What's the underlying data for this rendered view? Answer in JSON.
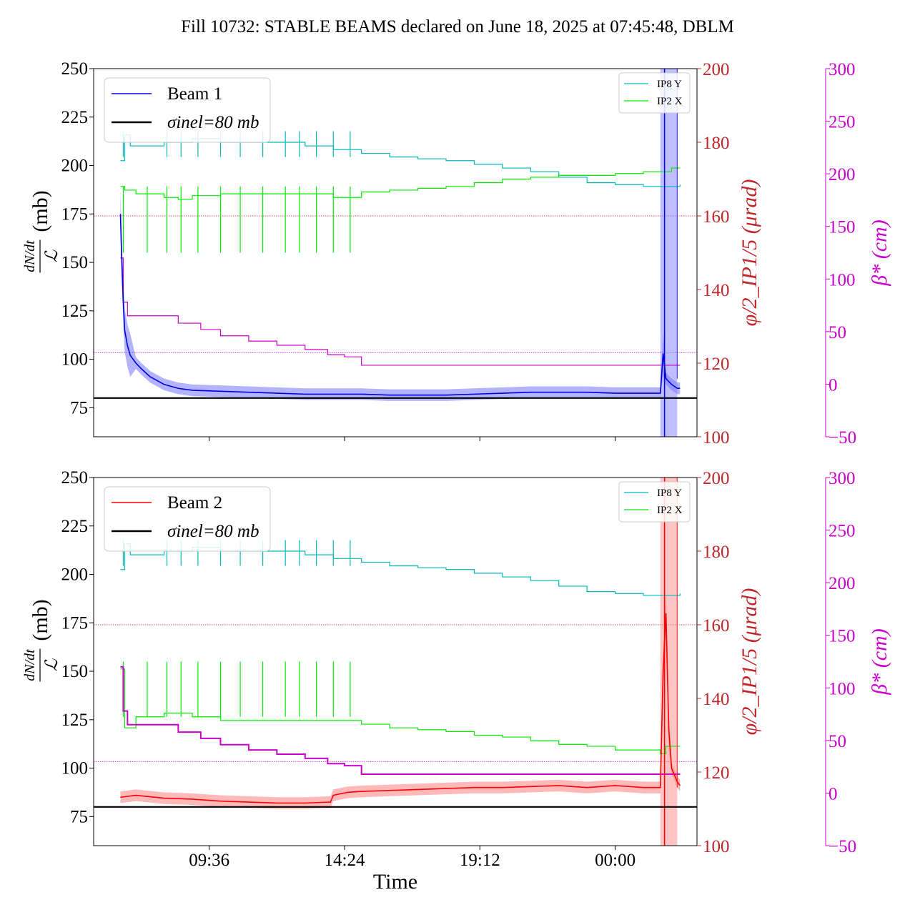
{
  "figure": {
    "title": "Fill 10732: STABLE BEAMS declared on June 18, 2025 at 07:45:48, DBLM",
    "xlabel": "Time"
  },
  "colors": {
    "beam1": "#0000dd",
    "beam2": "#ff0000",
    "ip8y": "#00bbbb",
    "ip2x": "#00ee00",
    "beta": "#cc00cc",
    "phi": "#c0262a",
    "sigma": "#000000"
  },
  "chart_data": [
    {
      "type": "line",
      "panel": "top",
      "ylabel": "dN/dt / ℒ (mb)",
      "y2label": "φ/2_IP1/5 (μrad)",
      "y3label": "β* (cm)",
      "ylim": [
        60,
        250
      ],
      "y2lim": [
        100,
        200
      ],
      "y3lim": [
        -50,
        300
      ],
      "yticks": [
        "75",
        "100",
        "125",
        "150",
        "175",
        "200",
        "225",
        "250"
      ],
      "y2ticks": [
        "100",
        "120",
        "140",
        "160",
        "180",
        "200"
      ],
      "y3ticks": [
        "−50",
        "0",
        "50",
        "100",
        "150",
        "200",
        "250",
        "300"
      ],
      "x_tick_hours": [
        9.6,
        14.4,
        19.2,
        24.0
      ],
      "xlim_hours": [
        5.5,
        26.9
      ],
      "legend_main": [
        "Beam 1",
        "σinel=80 mb"
      ],
      "legend_secondary": [
        "IP8 Y",
        "IP2 X"
      ],
      "sigma_inel_mb": 80,
      "beta_ref_cm": 30,
      "phi_ref_urad": 160,
      "series": [
        {
          "name": "Beam 1",
          "axis": "left",
          "x": [
            6.45,
            6.5,
            6.55,
            6.6,
            6.7,
            6.8,
            7.0,
            7.2,
            7.5,
            8.0,
            8.5,
            9.0,
            10.0,
            11.0,
            12.0,
            13.0,
            14.0,
            15.0,
            16.0,
            17.0,
            18.0,
            19.0,
            20.0,
            21.0,
            22.0,
            23.0,
            24.0,
            25.0,
            25.6,
            25.7,
            25.8,
            26.0,
            26.1,
            26.2,
            26.3
          ],
          "y": [
            175,
            150,
            130,
            115,
            107,
            102,
            98,
            95,
            91,
            87,
            85,
            84,
            83.5,
            83,
            82.5,
            82,
            82,
            82,
            81.5,
            81.5,
            81.5,
            82,
            82.5,
            83,
            83,
            83,
            82.5,
            82.5,
            82.5,
            103,
            90,
            87,
            86,
            85,
            85
          ]
        },
        {
          "name": "IP8 Y",
          "axis": "right",
          "x": [
            6.45,
            6.6,
            6.8,
            7.5,
            8.0,
            9.0,
            10.0,
            11.0,
            12.0,
            13.0,
            14.0,
            15.0,
            16.0,
            17.0,
            18.0,
            19.0,
            20.0,
            21.0,
            22.0,
            23.0,
            24.0,
            25.0,
            26.0,
            26.3
          ],
          "y": [
            175,
            182,
            179,
            179,
            180,
            181,
            180,
            180,
            180,
            179,
            178,
            177,
            176,
            175.5,
            175,
            174,
            173,
            172,
            170.5,
            169,
            168.5,
            168,
            168,
            168.5
          ]
        },
        {
          "name": "IP2 X",
          "axis": "right",
          "x": [
            6.45,
            6.6,
            7.0,
            8.0,
            8.5,
            9.0,
            10.0,
            11.0,
            12.0,
            13.0,
            14.0,
            15.0,
            16.0,
            17.0,
            18.0,
            19.0,
            20.0,
            21.0,
            22.0,
            23.0,
            24.0,
            25.0,
            26.0,
            26.3
          ],
          "y": [
            168,
            167,
            166,
            165,
            164.5,
            165.5,
            166,
            166,
            166,
            166,
            165,
            166.5,
            167,
            167.5,
            168,
            169,
            170,
            170.5,
            171,
            171,
            171.5,
            172,
            173,
            173
          ]
        },
        {
          "name": "beta*",
          "axis": "beta",
          "x": [
            6.45,
            6.55,
            6.7,
            8.0,
            8.5,
            9.3,
            10.0,
            11.0,
            12.0,
            13.0,
            13.8,
            14.4,
            15.0,
            16.0,
            18.0,
            20.0,
            22.0,
            24.0,
            26.3
          ],
          "y": [
            120,
            78,
            65,
            65,
            58,
            52,
            46,
            41,
            37,
            33,
            28,
            26,
            18,
            18,
            18,
            18,
            18,
            18,
            18
          ]
        }
      ]
    },
    {
      "type": "line",
      "panel": "bottom",
      "ylabel": "dN/dt / ℒ (mb)",
      "y2label": "φ/2_IP1/5 (μrad)",
      "y3label": "β* (cm)",
      "ylim": [
        60,
        250
      ],
      "y2lim": [
        100,
        200
      ],
      "y3lim": [
        -50,
        300
      ],
      "yticks": [
        "75",
        "100",
        "125",
        "150",
        "175",
        "200",
        "225",
        "250"
      ],
      "y2ticks": [
        "100",
        "120",
        "140",
        "160",
        "180",
        "200"
      ],
      "y3ticks": [
        "−50",
        "0",
        "50",
        "100",
        "150",
        "200",
        "250",
        "300"
      ],
      "xticks": [
        "09:36",
        "14:24",
        "19:12",
        "00:00"
      ],
      "x_tick_hours": [
        9.6,
        14.4,
        19.2,
        24.0
      ],
      "xlim_hours": [
        5.5,
        26.9
      ],
      "legend_main": [
        "Beam 2",
        "σinel=80 mb"
      ],
      "legend_secondary": [
        "IP8 Y",
        "IP2 X"
      ],
      "sigma_inel_mb": 80,
      "beta_ref_cm": 30,
      "phi_ref_urad": 160,
      "series": [
        {
          "name": "Beam 2",
          "axis": "left",
          "x": [
            6.45,
            7.0,
            8.0,
            9.0,
            10.0,
            11.0,
            12.0,
            13.0,
            13.9,
            14.0,
            14.5,
            15.0,
            16.0,
            17.0,
            18.0,
            19.0,
            20.0,
            21.0,
            22.0,
            23.0,
            24.0,
            25.0,
            25.6,
            25.7,
            25.8,
            25.9,
            26.0,
            26.2,
            26.3
          ],
          "y": [
            85,
            86,
            84.5,
            84,
            83,
            82.5,
            82,
            82,
            82.5,
            86,
            87.5,
            88,
            88.5,
            89,
            89.5,
            90,
            90,
            90.5,
            91,
            90,
            91,
            90,
            90,
            150,
            180,
            120,
            100,
            93,
            91
          ]
        },
        {
          "name": "IP8 Y",
          "axis": "right",
          "x": [
            6.45,
            6.6,
            6.8,
            7.5,
            8.0,
            9.0,
            10.0,
            11.0,
            12.0,
            13.0,
            14.0,
            15.0,
            16.0,
            17.0,
            18.0,
            19.0,
            20.0,
            21.0,
            22.0,
            23.0,
            24.0,
            25.0,
            26.0,
            26.3
          ],
          "y": [
            175,
            182,
            179,
            179,
            180,
            181,
            180,
            180,
            180,
            179,
            178,
            177,
            176,
            175.5,
            175,
            174,
            173,
            172,
            170.5,
            169,
            168.5,
            168,
            168,
            168.5
          ]
        },
        {
          "name": "IP2 X",
          "axis": "right",
          "x": [
            6.45,
            6.6,
            7.0,
            8.0,
            9.0,
            10.0,
            11.0,
            12.0,
            13.0,
            14.0,
            15.0,
            16.0,
            17.0,
            18.0,
            19.0,
            20.0,
            21.0,
            22.0,
            23.0,
            24.0,
            25.0,
            25.6,
            25.8,
            26.3
          ],
          "y": [
            148,
            132,
            135,
            136,
            135,
            134,
            134,
            134,
            134,
            134,
            133,
            132,
            131.5,
            131,
            130,
            129.5,
            128.5,
            127.5,
            127,
            126,
            126,
            125,
            127,
            127
          ]
        },
        {
          "name": "beta*",
          "axis": "beta",
          "x": [
            6.45,
            6.55,
            6.7,
            8.0,
            8.5,
            9.3,
            10.0,
            11.0,
            12.0,
            13.0,
            13.8,
            14.4,
            15.0,
            16.0,
            18.0,
            20.0,
            22.0,
            24.0,
            26.3
          ],
          "y": [
            120,
            78,
            65,
            65,
            58,
            52,
            46,
            41,
            37,
            33,
            28,
            26,
            18,
            18,
            18,
            18,
            18,
            18,
            18
          ]
        }
      ]
    }
  ]
}
